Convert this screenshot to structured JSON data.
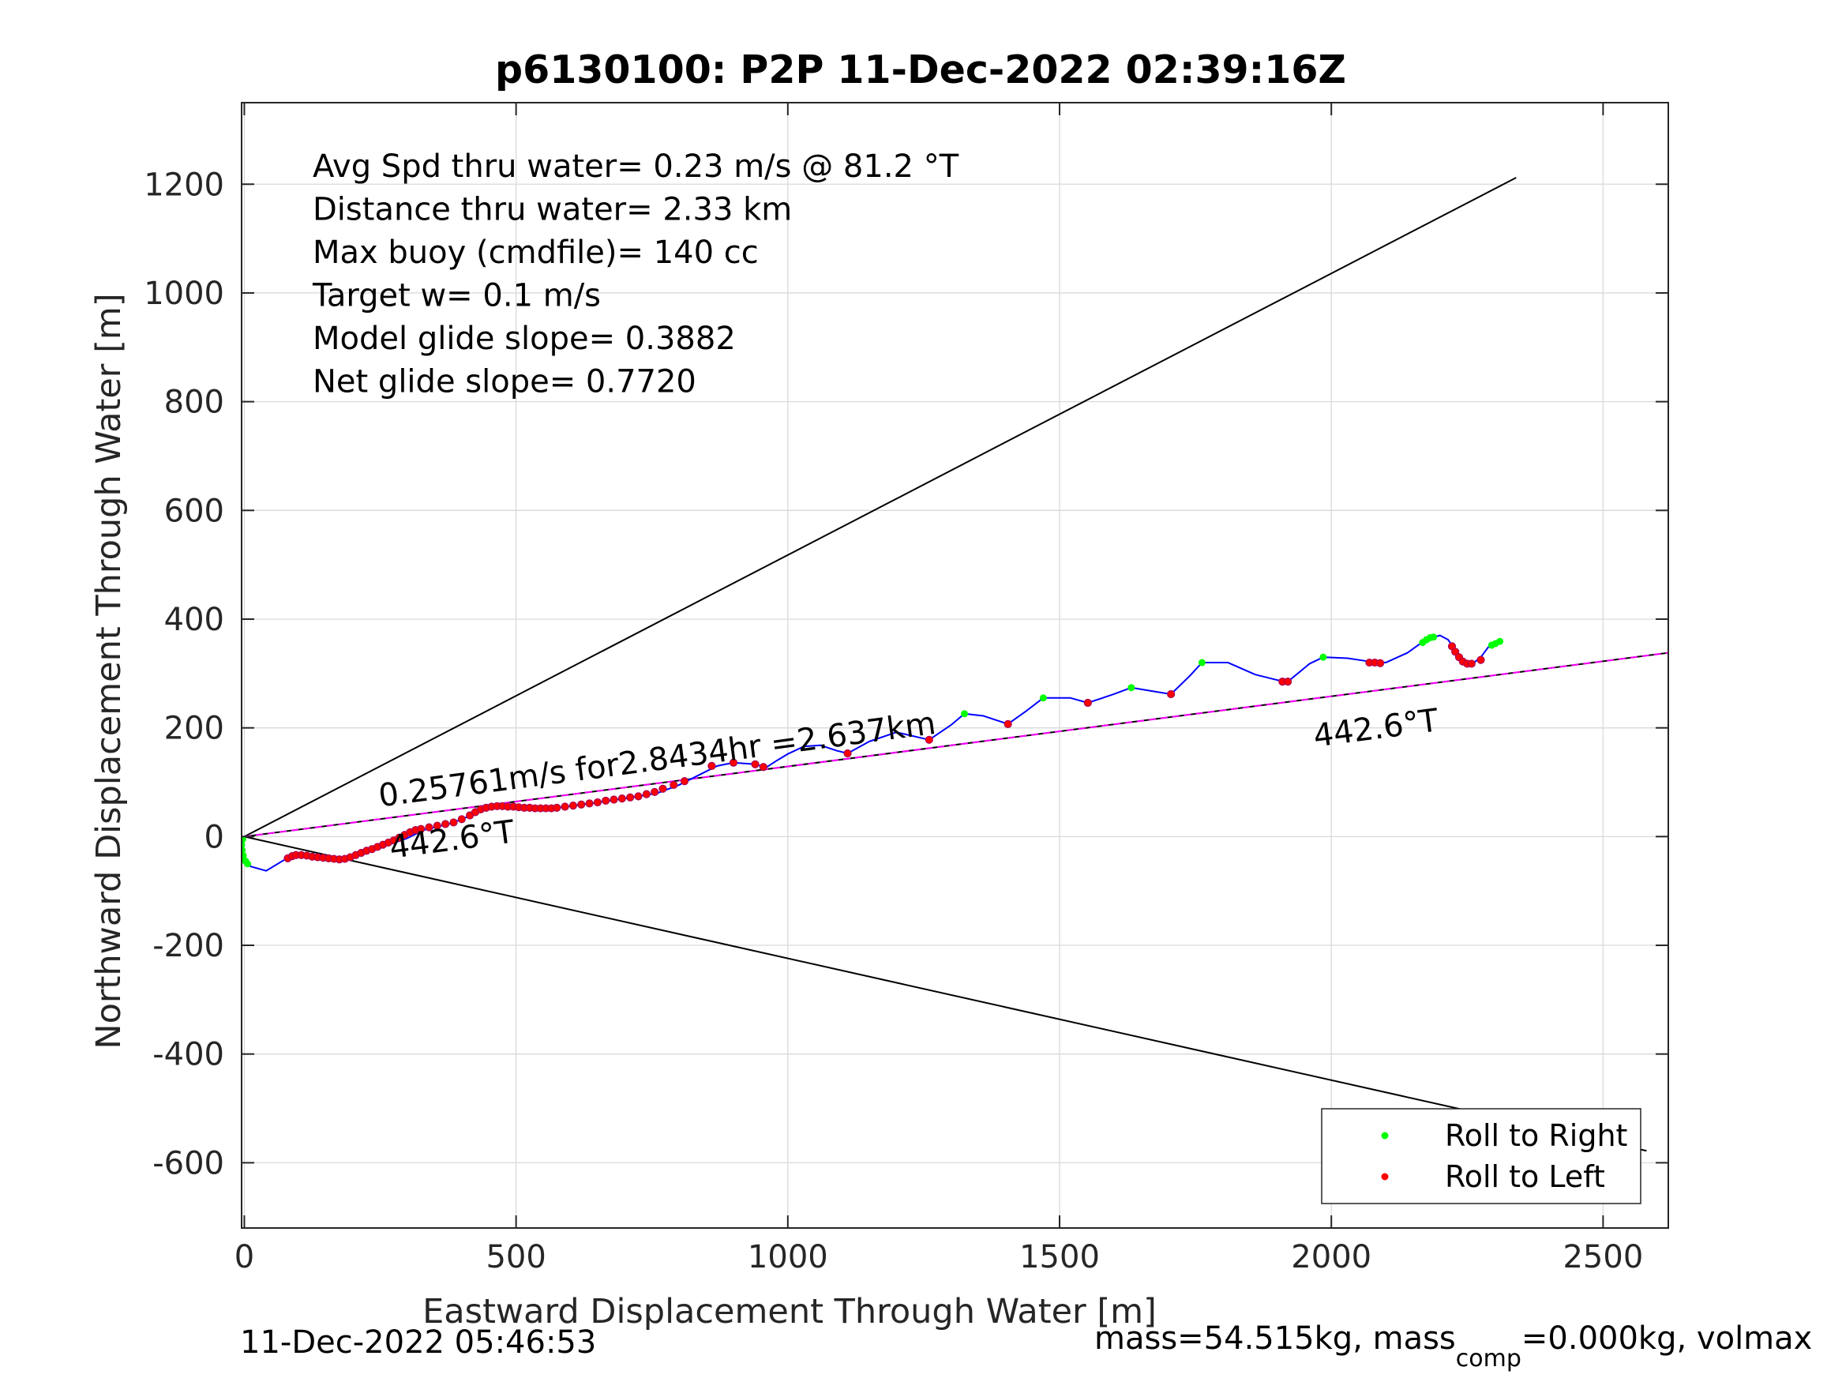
{
  "chart_data": {
    "type": "scatter",
    "title": "p6130100: P2P 11-Dec-2022 02:39:16Z",
    "xlabel": "Eastward Displacement Through Water [m]",
    "ylabel": "Northward Displacement Through Water [m]",
    "xlim": [
      -5,
      2620
    ],
    "ylim": [
      -720,
      1350
    ],
    "xticks": [
      0,
      500,
      1000,
      1500,
      2000,
      2500
    ],
    "yticks": [
      -600,
      -400,
      -200,
      0,
      200,
      400,
      600,
      800,
      1000,
      1200
    ],
    "grid": true,
    "legend": {
      "placement": "bottom-right",
      "entries": [
        {
          "label": "Roll to Right",
          "color": "#00ff00"
        },
        {
          "label": "Roll to Left",
          "color": "#ff0000"
        }
      ]
    },
    "info_lines": [
      "Avg Spd thru water=  0.23 m/s @  81.2 °T",
      "Distance thru water=  2.33 km",
      "Max buoy (cmdfile)= 140 cc",
      "Target w= 0.1 m/s",
      "Model glide slope= 0.3882",
      "Net glide slope= 0.7720"
    ],
    "annotations": [
      {
        "text": "0.25761m/s for2.8434hr =2.637km",
        "x": 250,
        "y": 55,
        "angle_deg": 7.5
      },
      {
        "text": "442.6°T",
        "x": 270,
        "y": -40,
        "angle_deg": 7.5
      },
      {
        "text": "442.6°T",
        "x": 1970,
        "y": 165,
        "angle_deg": 7.5
      }
    ],
    "footer_left": "11-Dec-2022 05:46:53",
    "footer_right": {
      "pre": "mass=54.515kg, mass",
      "sub": "comp",
      "post": "=0.000kg, volmax"
    },
    "reference_lines": [
      {
        "color": "#000000",
        "points": [
          [
            0,
            0
          ],
          [
            2340,
            1212
          ]
        ]
      },
      {
        "color": "#000000",
        "points": [
          [
            0,
            0
          ],
          [
            2580,
            -578
          ]
        ]
      },
      {
        "color": "#000000",
        "points": [
          [
            0,
            0
          ],
          [
            2620,
            338
          ]
        ]
      },
      {
        "color": "#ff00ff",
        "dashed": true,
        "points": [
          [
            0,
            0
          ],
          [
            2620,
            338
          ]
        ]
      }
    ],
    "track": {
      "color": "#0000ff",
      "points": [
        [
          0,
          0
        ],
        [
          -4,
          -20
        ],
        [
          0,
          -40
        ],
        [
          12,
          -55
        ],
        [
          40,
          -63
        ],
        [
          70,
          -45
        ],
        [
          85,
          -36
        ],
        [
          130,
          -38
        ],
        [
          180,
          -42
        ],
        [
          240,
          -24
        ],
        [
          300,
          -3
        ],
        [
          330,
          12
        ],
        [
          380,
          24
        ],
        [
          420,
          40
        ],
        [
          445,
          53
        ],
        [
          470,
          56
        ],
        [
          520,
          54
        ],
        [
          570,
          52
        ],
        [
          630,
          60
        ],
        [
          700,
          70
        ],
        [
          760,
          80
        ],
        [
          800,
          95
        ],
        [
          840,
          115
        ],
        [
          870,
          130
        ],
        [
          900,
          136
        ],
        [
          940,
          133
        ],
        [
          960,
          127
        ],
        [
          980,
          140
        ],
        [
          1000,
          152
        ],
        [
          1030,
          166
        ],
        [
          1060,
          168
        ],
        [
          1090,
          158
        ],
        [
          1110,
          153
        ],
        [
          1150,
          175
        ],
        [
          1200,
          192
        ],
        [
          1260,
          178
        ],
        [
          1300,
          205
        ],
        [
          1325,
          226
        ],
        [
          1360,
          222
        ],
        [
          1405,
          207
        ],
        [
          1440,
          232
        ],
        [
          1470,
          255
        ],
        [
          1520,
          255
        ],
        [
          1552,
          246
        ],
        [
          1600,
          262
        ],
        [
          1632,
          274
        ],
        [
          1680,
          266
        ],
        [
          1705,
          262
        ],
        [
          1740,
          296
        ],
        [
          1762,
          320
        ],
        [
          1810,
          320
        ],
        [
          1860,
          298
        ],
        [
          1900,
          288
        ],
        [
          1920,
          285
        ],
        [
          1960,
          318
        ],
        [
          1985,
          330
        ],
        [
          2030,
          328
        ],
        [
          2070,
          322
        ],
        [
          2100,
          320
        ],
        [
          2140,
          338
        ],
        [
          2175,
          363
        ],
        [
          2200,
          370
        ],
        [
          2215,
          362
        ],
        [
          2230,
          340
        ],
        [
          2245,
          320
        ],
        [
          2260,
          318
        ],
        [
          2275,
          330
        ],
        [
          2290,
          350
        ],
        [
          2310,
          360
        ]
      ]
    },
    "roll_right_points": [
      [
        -3,
        -5
      ],
      [
        -5,
        -15
      ],
      [
        -4,
        -25
      ],
      [
        -2,
        -35
      ],
      [
        2,
        -45
      ],
      [
        6,
        -50
      ],
      [
        1325,
        226
      ],
      [
        1470,
        255
      ],
      [
        1632,
        274
      ],
      [
        1762,
        320
      ],
      [
        1985,
        330
      ],
      [
        2168,
        357
      ],
      [
        2175,
        362
      ],
      [
        2182,
        366
      ],
      [
        2188,
        367
      ],
      [
        2295,
        352
      ],
      [
        2302,
        355
      ],
      [
        2310,
        359
      ]
    ],
    "roll_left_points": [
      [
        80,
        -40
      ],
      [
        88,
        -36
      ],
      [
        95,
        -34
      ],
      [
        105,
        -34
      ],
      [
        115,
        -35
      ],
      [
        125,
        -37
      ],
      [
        135,
        -38
      ],
      [
        145,
        -39
      ],
      [
        155,
        -40
      ],
      [
        165,
        -41
      ],
      [
        175,
        -42
      ],
      [
        185,
        -41
      ],
      [
        195,
        -38
      ],
      [
        205,
        -34
      ],
      [
        215,
        -30
      ],
      [
        225,
        -26
      ],
      [
        235,
        -23
      ],
      [
        245,
        -19
      ],
      [
        255,
        -15
      ],
      [
        265,
        -11
      ],
      [
        275,
        -7
      ],
      [
        285,
        -2
      ],
      [
        295,
        3
      ],
      [
        305,
        8
      ],
      [
        315,
        12
      ],
      [
        325,
        14
      ],
      [
        340,
        17
      ],
      [
        355,
        20
      ],
      [
        370,
        23
      ],
      [
        385,
        26
      ],
      [
        400,
        32
      ],
      [
        415,
        39
      ],
      [
        425,
        45
      ],
      [
        435,
        50
      ],
      [
        445,
        53
      ],
      [
        455,
        55
      ],
      [
        465,
        56
      ],
      [
        475,
        56
      ],
      [
        485,
        55
      ],
      [
        495,
        55
      ],
      [
        505,
        54
      ],
      [
        515,
        53
      ],
      [
        525,
        53
      ],
      [
        535,
        52
      ],
      [
        545,
        52
      ],
      [
        555,
        52
      ],
      [
        565,
        52
      ],
      [
        575,
        53
      ],
      [
        590,
        55
      ],
      [
        605,
        57
      ],
      [
        620,
        59
      ],
      [
        635,
        61
      ],
      [
        650,
        63
      ],
      [
        665,
        66
      ],
      [
        680,
        68
      ],
      [
        695,
        70
      ],
      [
        710,
        72
      ],
      [
        725,
        74
      ],
      [
        740,
        78
      ],
      [
        755,
        82
      ],
      [
        770,
        88
      ],
      [
        790,
        95
      ],
      [
        810,
        102
      ],
      [
        860,
        130
      ],
      [
        900,
        136
      ],
      [
        940,
        133
      ],
      [
        955,
        128
      ],
      [
        1110,
        153
      ],
      [
        1260,
        178
      ],
      [
        1405,
        207
      ],
      [
        1552,
        246
      ],
      [
        1705,
        262
      ],
      [
        1910,
        285
      ],
      [
        1920,
        285
      ],
      [
        2070,
        320
      ],
      [
        2080,
        320
      ],
      [
        2090,
        319
      ],
      [
        2222,
        350
      ],
      [
        2228,
        340
      ],
      [
        2235,
        330
      ],
      [
        2242,
        322
      ],
      [
        2250,
        318
      ],
      [
        2258,
        318
      ],
      [
        2275,
        325
      ]
    ]
  }
}
